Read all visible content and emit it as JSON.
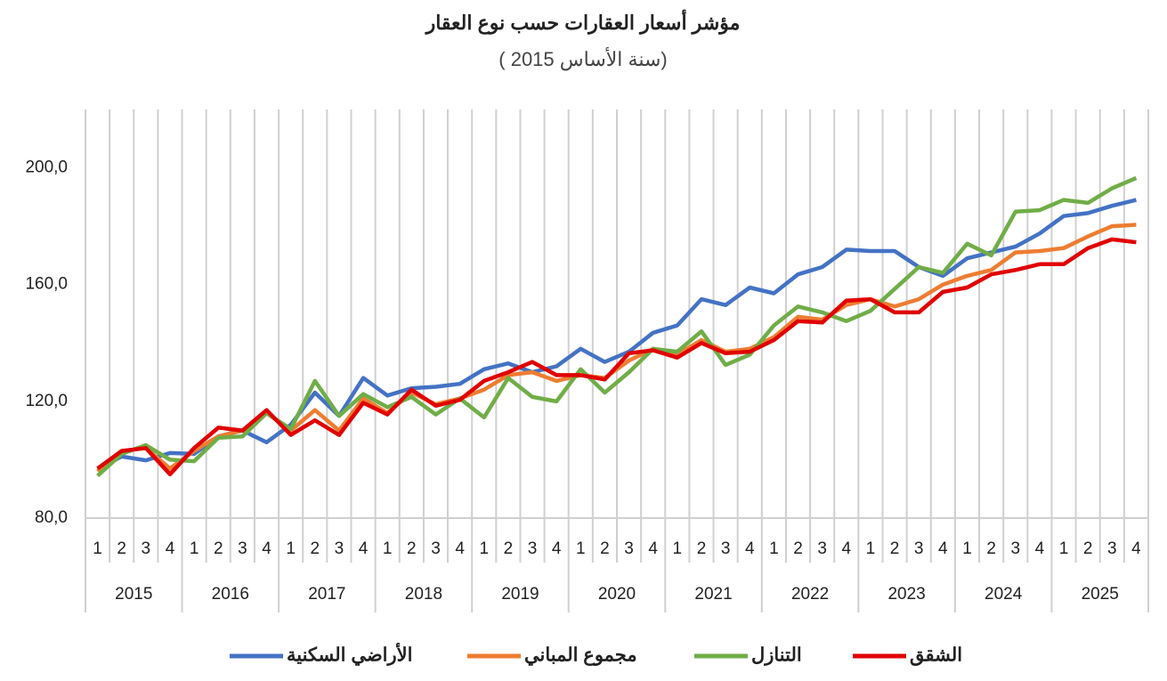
{
  "chart_data": {
    "type": "line",
    "title": "مؤشر أسعار العقارات حسب نوع العقار",
    "subtitle": "(سنة الأساس 2015 )",
    "categories": [
      "1",
      "2",
      "3",
      "4",
      "1",
      "2",
      "3",
      "4",
      "1",
      "2",
      "3",
      "4",
      "1",
      "2",
      "3",
      "4",
      "1",
      "2",
      "3",
      "4",
      "1",
      "2",
      "3",
      "4",
      "1",
      "2",
      "3",
      "4",
      "1",
      "2",
      "3",
      "4",
      "1",
      "2",
      "3",
      "4",
      "1",
      "2",
      "3",
      "4",
      "1",
      "2",
      "3",
      "4"
    ],
    "category_groups": [
      "2015",
      "2016",
      "2017",
      "2018",
      "2019",
      "2020",
      "2021",
      "2022",
      "2023",
      "2024",
      "2025"
    ],
    "ylim": [
      80,
      220
    ],
    "yticks": [
      {
        "value": 80,
        "label": "80,0"
      },
      {
        "value": 120,
        "label": "120,0"
      },
      {
        "value": 160,
        "label": "160,0"
      },
      {
        "value": 200,
        "label": "200,0"
      }
    ],
    "x_grid": true,
    "series": [
      {
        "name": "الأراضي السكنية",
        "color": "#4472c4",
        "values": [
          96.8,
          101.1,
          99.8,
          102.3,
          102,
          108,
          110,
          106,
          112,
          123,
          115,
          128,
          122,
          124.5,
          125,
          126,
          131,
          133,
          130,
          132,
          138,
          133.5,
          137,
          143.5,
          146,
          155,
          153,
          159,
          157,
          163.5,
          166,
          172,
          171.5,
          171.5,
          166,
          163,
          169,
          171,
          173,
          177.5,
          183.5,
          184.5,
          187,
          189
        ]
      },
      {
        "name": "مجموع المباني",
        "color": "#ed7d31",
        "values": [
          96,
          103,
          104,
          97,
          103,
          108,
          110,
          116,
          110,
          117,
          110,
          121,
          116,
          123,
          119,
          121,
          124,
          129,
          130,
          127,
          129,
          128,
          134,
          138,
          136,
          141,
          137,
          138,
          142,
          149,
          148,
          153,
          155,
          152.5,
          155,
          160,
          163,
          165,
          171,
          171.5,
          172.5,
          176.5,
          180,
          180.5
        ]
      },
      {
        "name": "التنازل",
        "color": "#70ad47",
        "values": [
          94.5,
          102,
          105,
          100,
          99.5,
          107.5,
          108,
          116,
          110.5,
          127,
          115,
          122.5,
          118,
          121.5,
          115.5,
          121,
          114.5,
          128,
          121.5,
          120,
          131,
          123,
          130,
          138,
          137,
          144,
          132.5,
          136,
          146,
          152.5,
          150.5,
          147.5,
          151,
          158.5,
          166,
          164,
          174,
          170,
          185,
          185.5,
          189,
          188,
          193,
          196.5
        ]
      },
      {
        "name": "الشقق",
        "color": "#e00000",
        "values": [
          97,
          103,
          104,
          95,
          104,
          111,
          110,
          117,
          108.5,
          113.5,
          108.5,
          119.5,
          115.5,
          124,
          118.5,
          120.5,
          127,
          130,
          133.5,
          129,
          129,
          127.5,
          136.5,
          137.5,
          135,
          140,
          136.5,
          137,
          141,
          147.5,
          147,
          154.5,
          155,
          150.5,
          150.5,
          157.5,
          159,
          163.5,
          165,
          167,
          167,
          172.5,
          175.5,
          174.5
        ]
      }
    ]
  }
}
